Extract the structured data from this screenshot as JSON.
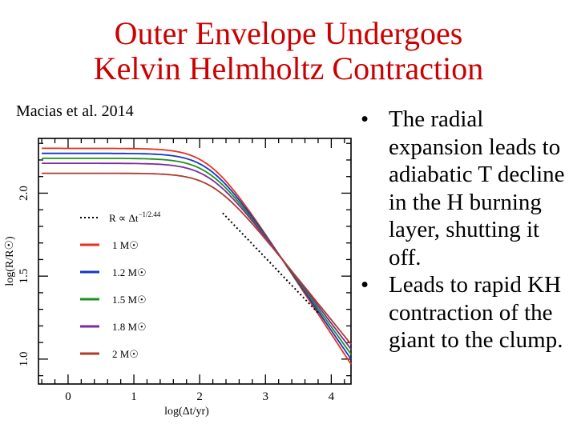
{
  "slide": {
    "title_lines": [
      "Outer Envelope Undergoes",
      "Kelvin Helmholtz Contraction"
    ],
    "citation": "Macias et al. 2014",
    "bullets": [
      "The radial expansion leads to adiabatic T decline in the H burning layer, shutting it off.",
      "Leads to rapid KH contraction of the giant to the clump."
    ],
    "bullet_symbol": "•"
  },
  "chart_data": {
    "type": "line",
    "xlabel": "log(Δt/yr)",
    "ylabel": "log(R/R☉)",
    "xlim": [
      -0.45,
      4.3
    ],
    "ylim": [
      0.85,
      2.33
    ],
    "xticks": [
      0,
      1,
      2,
      3,
      4
    ],
    "yticks": [
      1.0,
      1.5,
      2.0
    ],
    "ytick_labels": [
      "1.0",
      "1.5",
      "2.0"
    ],
    "legend_position": "left",
    "series": [
      {
        "name": "1 M☉",
        "color": "#e8301f",
        "plateau": 2.27,
        "knee_x": 2.15,
        "tail_x": 4.3,
        "tail_y": 0.97
      },
      {
        "name": "1.2 M☉",
        "color": "#1535c8",
        "plateau": 2.24,
        "knee_x": 2.15,
        "tail_x": 4.3,
        "tail_y": 1.0
      },
      {
        "name": "1.5 M☉",
        "color": "#1e8f1e",
        "plateau": 2.21,
        "knee_x": 2.15,
        "tail_x": 4.3,
        "tail_y": 1.03
      },
      {
        "name": "1.8 M☉",
        "color": "#7a2c9e",
        "plateau": 2.18,
        "knee_x": 2.15,
        "tail_x": 4.3,
        "tail_y": 1.06
      },
      {
        "name": "2 M☉",
        "color": "#b03a2e",
        "plateau": 2.12,
        "knee_x": 2.2,
        "tail_x": 4.3,
        "tail_y": 1.09
      }
    ],
    "fit_line": {
      "label": "R ∝ Δt",
      "exponent": "−1/2.44",
      "x": [
        2.35,
        3.82
      ],
      "y": [
        1.88,
        1.27
      ],
      "color": "#000000"
    }
  }
}
